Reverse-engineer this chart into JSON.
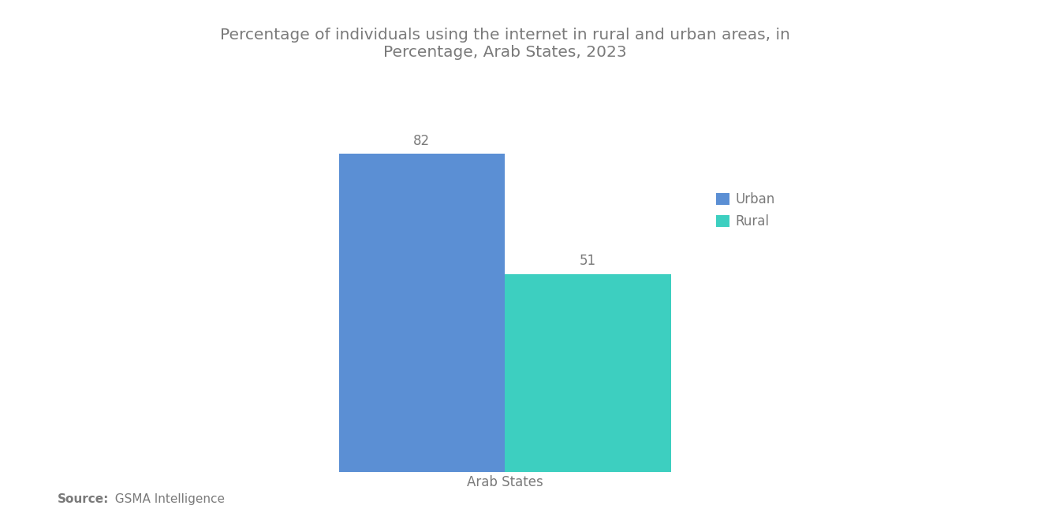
{
  "title": "Percentage of individuals using the internet in rural and urban areas, in\nPercentage, Arab States, 2023",
  "categories": [
    "Arab States"
  ],
  "urban_values": [
    82
  ],
  "rural_values": [
    51
  ],
  "urban_color": "#5B8FD4",
  "rural_color": "#3DCFC0",
  "urban_label": "Urban",
  "rural_label": "Rural",
  "bar_width": 0.22,
  "ylim": [
    0,
    100
  ],
  "source_label_bold": "Source:",
  "source_text_normal": "  GSMA Intelligence",
  "title_color": "#7a7a7a",
  "label_color": "#7a7a7a",
  "value_label_color": "#7a7a7a",
  "background_color": "#ffffff",
  "title_fontsize": 14.5,
  "axis_label_fontsize": 12,
  "value_fontsize": 12,
  "source_fontsize": 11,
  "legend_fontsize": 12
}
